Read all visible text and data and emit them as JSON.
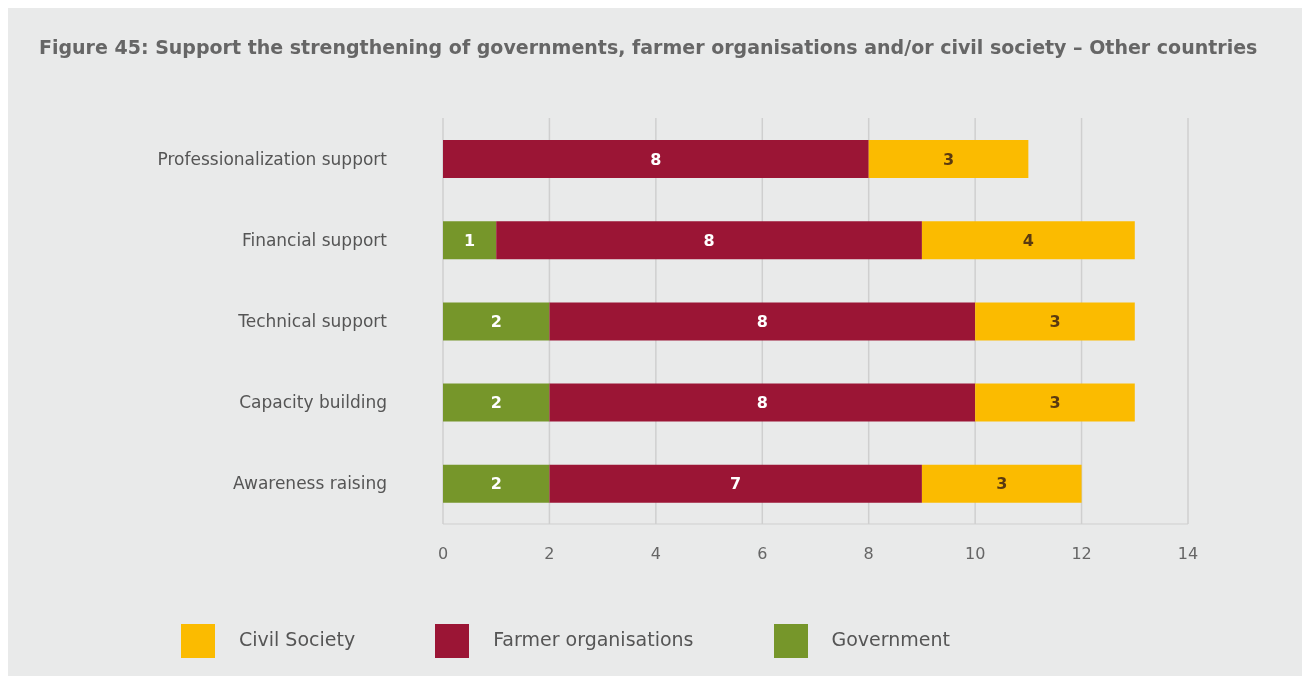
{
  "chart_data": {
    "type": "bar",
    "orientation": "horizontal",
    "stacked": true,
    "title": "Figure 45: Support the strengthening of governments, farmer organisations and/or civil society – Other countries",
    "categories": [
      "Professionalization support",
      "Financial support",
      "Technical support",
      "Capacity building",
      "Awareness raising"
    ],
    "series": [
      {
        "name": "Government",
        "color": "#76962a",
        "values": [
          null,
          1,
          2,
          2,
          2
        ]
      },
      {
        "name": "Farmer organisations",
        "color": "#9b1535",
        "values": [
          8,
          8,
          8,
          8,
          7
        ]
      },
      {
        "name": "Civil Society",
        "color": "#fbbb00",
        "values": [
          3,
          4,
          3,
          3,
          3
        ]
      }
    ],
    "xlim": [
      0,
      14
    ],
    "xticks": [
      0,
      2,
      4,
      6,
      8,
      10,
      12,
      14
    ],
    "grid": "x",
    "legend": "bottom",
    "data_labels": true
  }
}
